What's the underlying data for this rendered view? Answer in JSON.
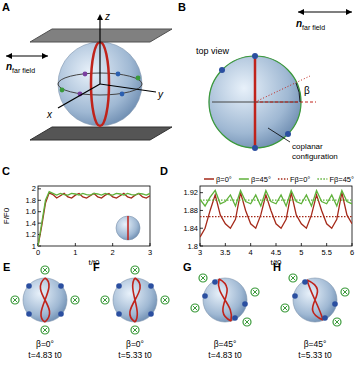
{
  "figure": {
    "panel_a": {
      "label": "A",
      "n_label": "n",
      "n_sub": "far field",
      "axes": {
        "x": "x",
        "y": "y",
        "z": "z"
      }
    },
    "panel_b": {
      "label": "B",
      "top_view": "top view",
      "n_label": "n",
      "n_sub": "far field",
      "angle": "β",
      "coplanar": [
        "coplanar",
        "configuration"
      ]
    },
    "snapshots": [
      {
        "label": "E",
        "beta": "β=0°",
        "time": "t=4.83 t0"
      },
      {
        "label": "F",
        "beta": "β=0°",
        "time": "t=5.33 t0"
      },
      {
        "label": "G",
        "beta": "β=45°",
        "time": "t=4.83 t0"
      },
      {
        "label": "H",
        "beta": "β=45°",
        "time": "t=5.33 t0"
      }
    ]
  },
  "chart_data": [
    {
      "type": "line",
      "label": "C",
      "x_label": "t/t0",
      "y_label": "F/F0",
      "xlim": [
        0,
        3
      ],
      "xticks": [
        0,
        1,
        2,
        3
      ],
      "ylim": [
        1,
        2.05
      ],
      "yticks": [
        1,
        1.2,
        1.4,
        1.6,
        1.8,
        2
      ],
      "series": [
        {
          "color": "#a52a1a",
          "line_style": "solid",
          "x": [
            0,
            0.1,
            0.2,
            0.3,
            0.4,
            0.5,
            0.6,
            0.7,
            0.8,
            0.9,
            1,
            1.1,
            1.2,
            1.3,
            1.4,
            1.5,
            1.6,
            1.7,
            1.8,
            1.9,
            2,
            2.1,
            2.2,
            2.3,
            2.4,
            2.5,
            2.6,
            2.7,
            2.8,
            2.9,
            3
          ],
          "values": [
            1.0,
            1.35,
            1.75,
            1.93,
            1.9,
            1.84,
            1.88,
            1.92,
            1.86,
            1.84,
            1.89,
            1.92,
            1.86,
            1.84,
            1.88,
            1.92,
            1.86,
            1.84,
            1.89,
            1.92,
            1.86,
            1.84,
            1.88,
            1.92,
            1.86,
            1.84,
            1.89,
            1.92,
            1.86,
            1.84,
            1.88
          ]
        },
        {
          "color": "#5fb13a",
          "line_style": "solid",
          "x": [
            0,
            0.1,
            0.2,
            0.3,
            0.4,
            0.5,
            0.6,
            0.7,
            0.8,
            0.9,
            1,
            1.1,
            1.2,
            1.3,
            1.4,
            1.5,
            1.6,
            1.7,
            1.8,
            1.9,
            2,
            2.1,
            2.2,
            2.3,
            2.4,
            2.5,
            2.6,
            2.7,
            2.8,
            2.9,
            3
          ],
          "values": [
            1.0,
            1.4,
            1.8,
            1.95,
            1.92,
            1.89,
            1.92,
            1.9,
            1.89,
            1.92,
            1.91,
            1.89,
            1.92,
            1.9,
            1.89,
            1.92,
            1.91,
            1.89,
            1.92,
            1.9,
            1.89,
            1.92,
            1.91,
            1.89,
            1.92,
            1.9,
            1.89,
            1.92,
            1.91,
            1.89,
            1.92
          ]
        }
      ]
    },
    {
      "type": "line",
      "label": "D",
      "x_label": "t/t0",
      "legend": "top",
      "xlim": [
        3,
        6
      ],
      "xticks": [
        3,
        3.5,
        4,
        4.5,
        5,
        5.5,
        6
      ],
      "ylim": [
        1.8,
        1.935
      ],
      "yticks": [
        1.8,
        1.84,
        1.88,
        1.92
      ],
      "series": [
        {
          "name": "β=0°",
          "color": "#a52a1a",
          "line_style": "solid",
          "x": [
            3,
            3.1,
            3.2,
            3.3,
            3.4,
            3.5,
            3.6,
            3.7,
            3.8,
            3.9,
            4,
            4.1,
            4.2,
            4.3,
            4.4,
            4.5,
            4.6,
            4.7,
            4.8,
            4.9,
            5,
            5.1,
            5.2,
            5.3,
            5.4,
            5.5,
            5.6,
            5.7,
            5.8,
            5.9,
            6
          ],
          "values": [
            1.82,
            1.84,
            1.88,
            1.915,
            1.87,
            1.85,
            1.84,
            1.86,
            1.92,
            1.88,
            1.85,
            1.84,
            1.87,
            1.915,
            1.88,
            1.85,
            1.84,
            1.86,
            1.92,
            1.87,
            1.85,
            1.84,
            1.87,
            1.915,
            1.88,
            1.85,
            1.84,
            1.86,
            1.92,
            1.87,
            1.85
          ]
        },
        {
          "name": "β=45°",
          "color": "#5fb13a",
          "line_style": "solid",
          "x": [
            3,
            3.1,
            3.2,
            3.3,
            3.4,
            3.5,
            3.6,
            3.7,
            3.8,
            3.9,
            4,
            4.1,
            4.2,
            4.3,
            4.4,
            4.5,
            4.6,
            4.7,
            4.8,
            4.9,
            5,
            5.1,
            5.2,
            5.3,
            5.4,
            5.5,
            5.6,
            5.7,
            5.8,
            5.9,
            6
          ],
          "values": [
            1.905,
            1.89,
            1.91,
            1.925,
            1.895,
            1.9,
            1.915,
            1.89,
            1.925,
            1.9,
            1.895,
            1.915,
            1.89,
            1.925,
            1.9,
            1.895,
            1.915,
            1.89,
            1.925,
            1.9,
            1.895,
            1.915,
            1.89,
            1.925,
            1.9,
            1.895,
            1.915,
            1.89,
            1.925,
            1.9,
            1.895
          ]
        },
        {
          "name": "Fβ=0°",
          "color": "#a52a1a",
          "line_style": "dotted",
          "x": [
            3,
            6
          ],
          "values": [
            1.866,
            1.866
          ]
        },
        {
          "name": "Fβ=45°",
          "color": "#5fb13a",
          "line_style": "dotted",
          "x": [
            3,
            6
          ],
          "values": [
            1.903,
            1.903
          ]
        }
      ]
    }
  ]
}
